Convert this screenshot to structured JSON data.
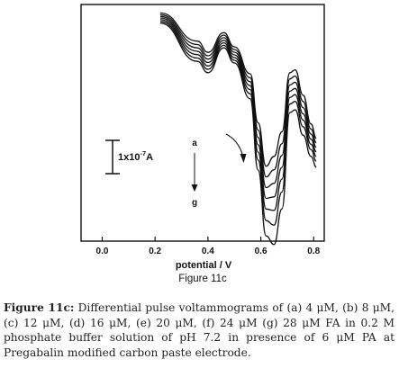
{
  "chart_data": {
    "type": "line",
    "title": "",
    "xlabel": "potential / V",
    "ylabel": "",
    "xlim": [
      -0.08,
      0.84
    ],
    "ylim": [
      -1.0,
      3.2
    ],
    "x_ticks": [
      "0.0",
      "0.2",
      "0.4",
      "0.6",
      "0.8"
    ],
    "x_tick_values": [
      0.0,
      0.2,
      0.4,
      0.6,
      0.8
    ],
    "grid": false,
    "series": [
      {
        "name": "a",
        "peak1": 0.5,
        "peak2": 0.9,
        "x": [
          0.22,
          0.36,
          0.4,
          0.46,
          0.5,
          0.56,
          0.59,
          0.62,
          0.65,
          0.68,
          0.71,
          0.73,
          0.76,
          0.79,
          0.81
        ]
      },
      {
        "name": "b",
        "peak1": 0.53,
        "peak2": 1.1
      },
      {
        "name": "c",
        "peak1": 0.56,
        "peak2": 1.3
      },
      {
        "name": "d",
        "peak1": 0.59,
        "peak2": 1.5
      },
      {
        "name": "e",
        "peak1": 0.62,
        "peak2": 1.7
      },
      {
        "name": "f",
        "peak1": 0.65,
        "peak2": 1.92
      },
      {
        "name": "g",
        "peak1": 0.68,
        "peak2": 2.22
      }
    ],
    "scale_bar_label_base": "1x10",
    "scale_bar_label_exp": "-7",
    "scale_bar_label_unit": "A",
    "arrow_top_label": "a",
    "arrow_bottom_label": "g",
    "figure_label": "Figure 11c"
  },
  "caption": {
    "lead": "Figure 11c:",
    "text": " Differential pulse voltammograms of (a) 4 μM, (b) 8 μM, (c) 12 μM, (d) 16 μM, (e) 20 μM, (f) 24 μM (g) 28 μM FA in 0.2 M phosphate buffer solution of pH 7.2 in presence of 6 μM PA at Pregabalin modified carbon paste electrode."
  }
}
